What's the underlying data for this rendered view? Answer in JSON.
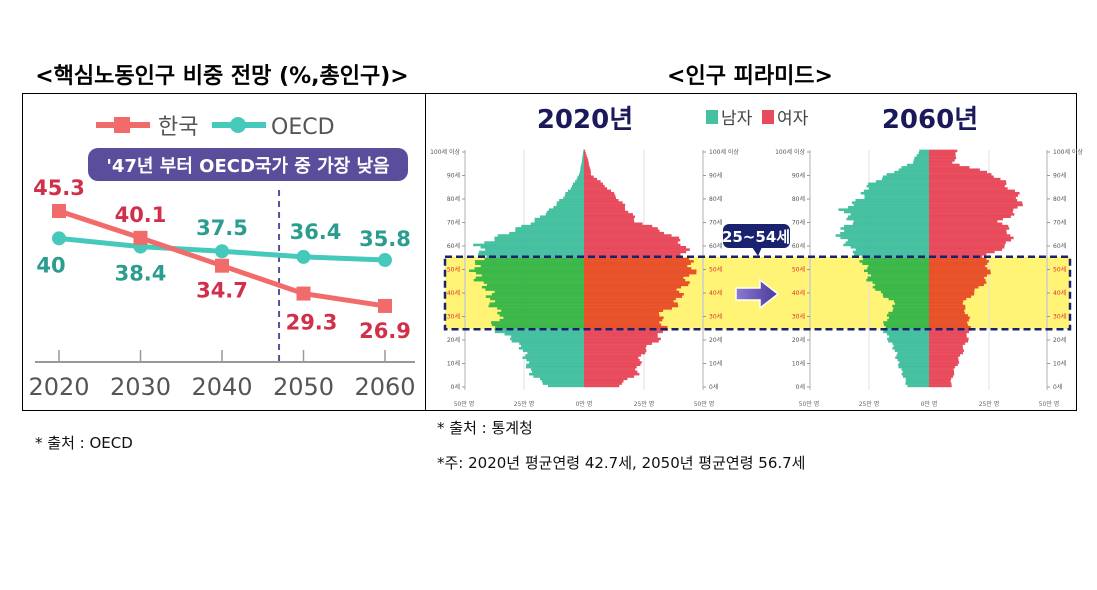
{
  "chart_data": [
    {
      "type": "line",
      "title": "<핵심노동인구 비중 전망 (%,총인구)>",
      "categories": [
        "2020",
        "2030",
        "2040",
        "2050",
        "2060"
      ],
      "series": [
        {
          "name": "한국",
          "values": [
            45.3,
            40.1,
            34.7,
            29.3,
            26.9
          ],
          "color": "#f26b6b",
          "label_color": "#d0304a",
          "marker": "square"
        },
        {
          "name": "OECD",
          "values": [
            40.0,
            38.4,
            37.5,
            36.4,
            35.8
          ],
          "color": "#45c9bb",
          "label_color": "#2a9d8f",
          "marker": "circle"
        }
      ],
      "annotation": "'47년 부터 OECD국가 중 가장 낮음",
      "annotation_color": "#5a4e9c",
      "marker_line_year": 2047,
      "grid": false,
      "legend": "top",
      "source": "* 출처 : OECD"
    },
    {
      "type": "bar",
      "title": "<인구 피라미드>",
      "orientation": "horizontal-pyramid",
      "legend": [
        {
          "name": "남자",
          "color": "#45c0a0"
        },
        {
          "name": "여자",
          "color": "#e84b5c"
        }
      ],
      "age_ticks": [
        "100세 이상",
        "90세",
        "80세",
        "70세",
        "60세",
        "50세",
        "40세",
        "30세",
        "20세",
        "10세",
        "0세"
      ],
      "x_ticks": [
        "50만 명",
        "25만 명",
        "0만 명",
        "25만 명",
        "50만 명"
      ],
      "xlim": [
        -50,
        50
      ],
      "ages": [
        0,
        5,
        10,
        15,
        20,
        25,
        30,
        35,
        40,
        45,
        50,
        55,
        60,
        65,
        70,
        75,
        80,
        85,
        90,
        95,
        100
      ],
      "panels": [
        {
          "title": "2020년",
          "male": [
            15,
            22,
            24,
            25,
            30,
            39,
            34,
            39,
            39,
            44,
            46,
            42,
            44,
            32,
            21,
            14,
            9,
            5,
            2,
            1,
            0.3
          ],
          "female": [
            14,
            22,
            23,
            25,
            31,
            34,
            31,
            39,
            40,
            43,
            46,
            42,
            42,
            35,
            22,
            18,
            14,
            9,
            3,
            2,
            0.5
          ]
        },
        {
          "title": "2060년",
          "male": [
            9,
            11,
            13,
            14,
            17,
            19,
            17,
            14,
            21,
            25,
            26,
            29,
            34,
            38,
            32,
            36,
            28,
            26,
            17,
            7,
            4
          ],
          "female": [
            9,
            10,
            12,
            14,
            16,
            17,
            16,
            14,
            19,
            24,
            25,
            23,
            33,
            34,
            30,
            37,
            38,
            33,
            27,
            10,
            12
          ]
        }
      ],
      "highlight": {
        "label": "25~54세",
        "from_age": 25,
        "to_age": 54,
        "band_color": "#fff475",
        "male_color": "#3cb84a",
        "female_color": "#e8522a"
      },
      "source": "* 출처 : 통계청",
      "note": "*주: 2020년 평균연령 42.7세, 2050년 평균연령 56.7세"
    }
  ]
}
